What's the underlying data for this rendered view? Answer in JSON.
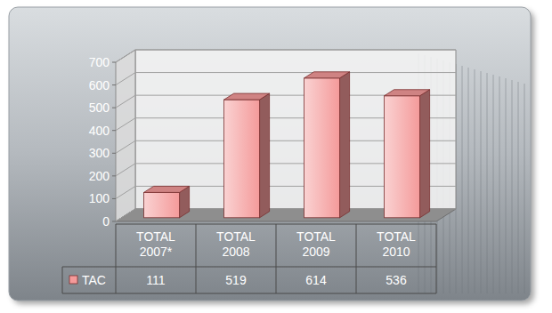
{
  "chart_data": {
    "type": "bar",
    "categories": [
      "TOTAL 2007*",
      "TOTAL 2008",
      "TOTAL 2009",
      "TOTAL 2010"
    ],
    "series": [
      {
        "name": "TAC",
        "color": "#f49a9a",
        "values": [
          111,
          519,
          614,
          536
        ]
      }
    ],
    "ylim": [
      0,
      700
    ],
    "yticks": [
      0,
      100,
      200,
      300,
      400,
      500,
      600,
      700
    ],
    "grid": true,
    "legend": "bottom"
  }
}
